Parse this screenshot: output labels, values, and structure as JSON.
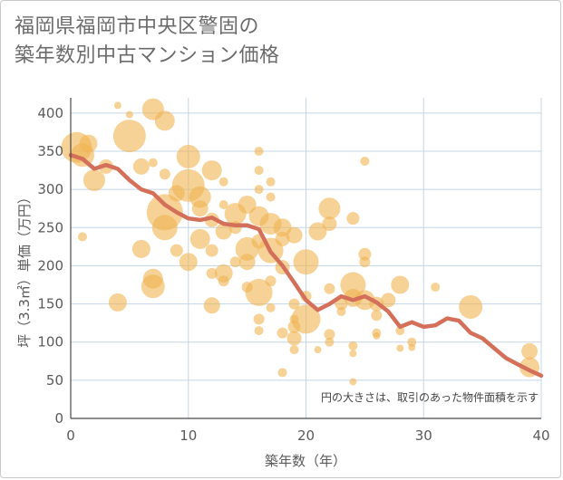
{
  "title": {
    "line1": "福岡県福岡市中央区警固の",
    "line2": "築年数別中古マンション価格"
  },
  "chart_data": {
    "type": "scatter",
    "xlabel": "築年数（年）",
    "ylabel": "坪（3.3㎡）単価（万円）",
    "xlim": [
      0,
      40
    ],
    "ylim": [
      0,
      420
    ],
    "xticks": [
      0,
      10,
      20,
      30,
      40
    ],
    "yticks": [
      0,
      50,
      100,
      150,
      200,
      250,
      300,
      350,
      400
    ],
    "grid": true,
    "annotation": "円の大きさは、取引のあった物件面積を示す",
    "colors": {
      "bubble": "#f0b451",
      "trend": "#d4705a",
      "grid": "#c5d5e6",
      "axis": "#4a4a4a"
    },
    "series": [
      {
        "kind": "bubbles",
        "points": [
          {
            "x": 0.5,
            "y": 355,
            "r": 17
          },
          {
            "x": 1,
            "y": 345,
            "r": 13
          },
          {
            "x": 1.5,
            "y": 360,
            "r": 10
          },
          {
            "x": 2,
            "y": 312,
            "r": 12
          },
          {
            "x": 3,
            "y": 330,
            "r": 8
          },
          {
            "x": 1,
            "y": 238,
            "r": 5
          },
          {
            "x": 4,
            "y": 410,
            "r": 4
          },
          {
            "x": 5,
            "y": 398,
            "r": 4
          },
          {
            "x": 5,
            "y": 370,
            "r": 18
          },
          {
            "x": 6,
            "y": 330,
            "r": 9
          },
          {
            "x": 7,
            "y": 335,
            "r": 5
          },
          {
            "x": 7,
            "y": 405,
            "r": 12
          },
          {
            "x": 8,
            "y": 390,
            "r": 11
          },
          {
            "x": 8,
            "y": 320,
            "r": 6
          },
          {
            "x": 6,
            "y": 222,
            "r": 10
          },
          {
            "x": 4,
            "y": 152,
            "r": 10
          },
          {
            "x": 7,
            "y": 183,
            "r": 11
          },
          {
            "x": 7,
            "y": 173,
            "r": 13
          },
          {
            "x": 8,
            "y": 270,
            "r": 20
          },
          {
            "x": 8,
            "y": 250,
            "r": 14
          },
          {
            "x": 9,
            "y": 295,
            "r": 9
          },
          {
            "x": 9,
            "y": 220,
            "r": 7
          },
          {
            "x": 10,
            "y": 343,
            "r": 13
          },
          {
            "x": 10,
            "y": 305,
            "r": 18
          },
          {
            "x": 10,
            "y": 205,
            "r": 10
          },
          {
            "x": 11,
            "y": 290,
            "r": 12
          },
          {
            "x": 11,
            "y": 235,
            "r": 11
          },
          {
            "x": 11,
            "y": 275,
            "r": 9
          },
          {
            "x": 12,
            "y": 325,
            "r": 11
          },
          {
            "x": 12,
            "y": 260,
            "r": 8
          },
          {
            "x": 12,
            "y": 220,
            "r": 7
          },
          {
            "x": 12,
            "y": 190,
            "r": 6
          },
          {
            "x": 12,
            "y": 148,
            "r": 9
          },
          {
            "x": 13,
            "y": 310,
            "r": 5
          },
          {
            "x": 13,
            "y": 280,
            "r": 5
          },
          {
            "x": 13,
            "y": 245,
            "r": 9
          },
          {
            "x": 13,
            "y": 190,
            "r": 10
          },
          {
            "x": 13,
            "y": 180,
            "r": 6
          },
          {
            "x": 14,
            "y": 268,
            "r": 12
          },
          {
            "x": 14,
            "y": 250,
            "r": 7
          },
          {
            "x": 14,
            "y": 205,
            "r": 6
          },
          {
            "x": 15,
            "y": 280,
            "r": 10
          },
          {
            "x": 15,
            "y": 222,
            "r": 13
          },
          {
            "x": 15,
            "y": 205,
            "r": 9
          },
          {
            "x": 15,
            "y": 172,
            "r": 6
          },
          {
            "x": 16,
            "y": 350,
            "r": 5
          },
          {
            "x": 16,
            "y": 325,
            "r": 5
          },
          {
            "x": 16,
            "y": 300,
            "r": 5
          },
          {
            "x": 16,
            "y": 265,
            "r": 11
          },
          {
            "x": 16,
            "y": 232,
            "r": 8
          },
          {
            "x": 16,
            "y": 165,
            "r": 15
          },
          {
            "x": 16,
            "y": 130,
            "r": 6
          },
          {
            "x": 16,
            "y": 115,
            "r": 5
          },
          {
            "x": 17,
            "y": 310,
            "r": 5
          },
          {
            "x": 17,
            "y": 290,
            "r": 5
          },
          {
            "x": 17,
            "y": 255,
            "r": 12
          },
          {
            "x": 17,
            "y": 220,
            "r": 14
          },
          {
            "x": 17,
            "y": 180,
            "r": 6
          },
          {
            "x": 17,
            "y": 145,
            "r": 5
          },
          {
            "x": 18,
            "y": 250,
            "r": 10
          },
          {
            "x": 18,
            "y": 235,
            "r": 8
          },
          {
            "x": 18,
            "y": 198,
            "r": 8
          },
          {
            "x": 18,
            "y": 112,
            "r": 6
          },
          {
            "x": 18,
            "y": 60,
            "r": 5
          },
          {
            "x": 19,
            "y": 240,
            "r": 9
          },
          {
            "x": 19,
            "y": 150,
            "r": 6
          },
          {
            "x": 19,
            "y": 130,
            "r": 5
          },
          {
            "x": 19,
            "y": 120,
            "r": 7
          },
          {
            "x": 19,
            "y": 105,
            "r": 8
          },
          {
            "x": 19,
            "y": 90,
            "r": 5
          },
          {
            "x": 20,
            "y": 205,
            "r": 14
          },
          {
            "x": 20,
            "y": 130,
            "r": 16
          },
          {
            "x": 20,
            "y": 160,
            "r": 6
          },
          {
            "x": 21,
            "y": 245,
            "r": 10
          },
          {
            "x": 21,
            "y": 90,
            "r": 4
          },
          {
            "x": 22,
            "y": 275,
            "r": 12
          },
          {
            "x": 22,
            "y": 255,
            "r": 8
          },
          {
            "x": 22,
            "y": 170,
            "r": 6
          },
          {
            "x": 22,
            "y": 110,
            "r": 6
          },
          {
            "x": 22,
            "y": 100,
            "r": 5
          },
          {
            "x": 23,
            "y": 150,
            "r": 7
          },
          {
            "x": 23,
            "y": 140,
            "r": 5
          },
          {
            "x": 24,
            "y": 175,
            "r": 14
          },
          {
            "x": 24,
            "y": 158,
            "r": 10
          },
          {
            "x": 24,
            "y": 262,
            "r": 7
          },
          {
            "x": 24,
            "y": 95,
            "r": 5
          },
          {
            "x": 24,
            "y": 85,
            "r": 4
          },
          {
            "x": 24,
            "y": 48,
            "r": 4
          },
          {
            "x": 25,
            "y": 337,
            "r": 5
          },
          {
            "x": 25,
            "y": 215,
            "r": 7
          },
          {
            "x": 25,
            "y": 205,
            "r": 6
          },
          {
            "x": 25,
            "y": 155,
            "r": 11
          },
          {
            "x": 26,
            "y": 150,
            "r": 8
          },
          {
            "x": 26,
            "y": 135,
            "r": 6
          },
          {
            "x": 26,
            "y": 112,
            "r": 5
          },
          {
            "x": 26,
            "y": 108,
            "r": 4
          },
          {
            "x": 27,
            "y": 155,
            "r": 8
          },
          {
            "x": 28,
            "y": 175,
            "r": 10
          },
          {
            "x": 28,
            "y": 115,
            "r": 5
          },
          {
            "x": 28,
            "y": 92,
            "r": 4
          },
          {
            "x": 29,
            "y": 100,
            "r": 5
          },
          {
            "x": 29,
            "y": 93,
            "r": 4
          },
          {
            "x": 31,
            "y": 172,
            "r": 5
          },
          {
            "x": 34,
            "y": 146,
            "r": 13
          },
          {
            "x": 39,
            "y": 88,
            "r": 9
          },
          {
            "x": 39,
            "y": 67,
            "r": 11
          }
        ]
      },
      {
        "kind": "trend",
        "x": [
          0,
          1,
          2,
          3,
          4,
          5,
          6,
          7,
          8,
          9,
          10,
          11,
          12,
          13,
          14,
          15,
          16,
          17,
          18,
          19,
          20,
          21,
          22,
          23,
          24,
          25,
          26,
          27,
          28,
          29,
          30,
          31,
          32,
          33,
          34,
          35,
          36,
          37,
          38,
          39,
          40
        ],
        "y": [
          345,
          340,
          327,
          332,
          327,
          312,
          300,
          295,
          280,
          270,
          262,
          260,
          263,
          255,
          253,
          253,
          248,
          218,
          200,
          178,
          155,
          142,
          150,
          160,
          155,
          160,
          152,
          140,
          120,
          126,
          120,
          122,
          131,
          128,
          112,
          105,
          92,
          79,
          71,
          63,
          56
        ]
      }
    ]
  }
}
